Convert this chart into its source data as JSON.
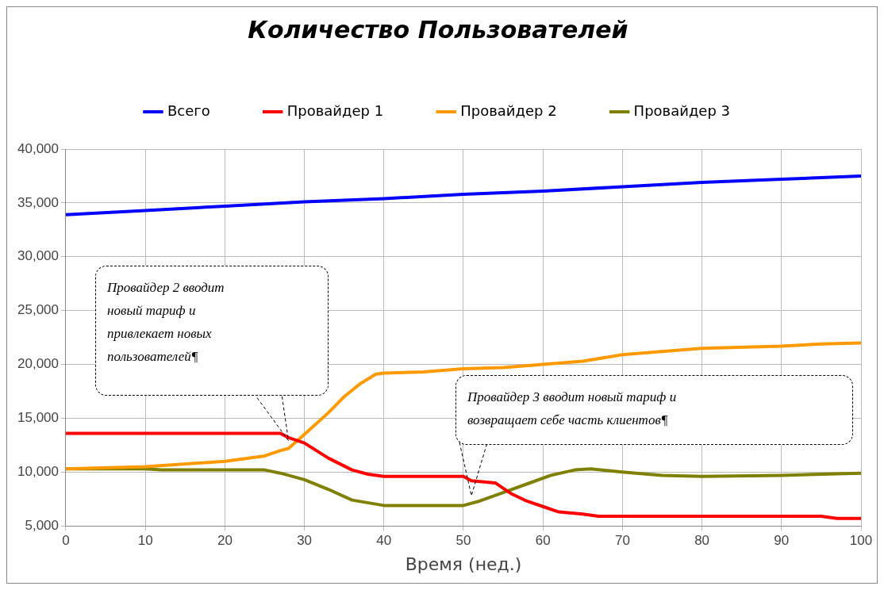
{
  "chart_data": {
    "type": "line",
    "title": "Количество Пользователей",
    "xlabel": "Время (нед.)",
    "xlim": [
      0,
      100
    ],
    "xticks": [
      0,
      10,
      20,
      30,
      40,
      50,
      60,
      70,
      80,
      90,
      100
    ],
    "ylim": [
      5000,
      40000
    ],
    "yticks": [
      {
        "value": 5000,
        "label": "5,000"
      },
      {
        "value": 10000,
        "label": "10,000"
      },
      {
        "value": 15000,
        "label": "15,000"
      },
      {
        "value": 20000,
        "label": "20,000"
      },
      {
        "value": 25000,
        "label": "25,000"
      },
      {
        "value": 30000,
        "label": "30,000"
      },
      {
        "value": 35000,
        "label": "35,000"
      },
      {
        "value": 40000,
        "label": "40,000"
      }
    ],
    "grid": true,
    "legend": "top",
    "marker": "none",
    "line_style": "solid",
    "series": [
      {
        "name": "Всего",
        "color": "#0000ff",
        "x": [
          0,
          10,
          20,
          30,
          40,
          50,
          60,
          70,
          80,
          90,
          100
        ],
        "values": [
          33900,
          34300,
          34700,
          35100,
          35400,
          35800,
          36100,
          36500,
          36900,
          37200,
          37500
        ]
      },
      {
        "name": "Провайдер 1",
        "color": "#ff0000",
        "x": [
          0,
          27,
          28,
          30,
          33,
          36,
          38,
          40,
          50,
          51,
          54,
          56,
          58,
          60,
          62,
          65,
          67,
          95,
          97,
          100
        ],
        "values": [
          13600,
          13600,
          13200,
          12700,
          11300,
          10200,
          9800,
          9600,
          9600,
          9200,
          9000,
          8000,
          7300,
          6800,
          6300,
          6100,
          5900,
          5900,
          5700,
          5700
        ]
      },
      {
        "name": "Провайдер 2",
        "color": "#ff9900",
        "x": [
          0,
          10,
          20,
          25,
          27,
          28,
          30,
          33,
          35,
          37,
          39,
          40,
          45,
          50,
          55,
          60,
          65,
          70,
          75,
          80,
          90,
          95,
          100
        ],
        "values": [
          10300,
          10500,
          11000,
          11500,
          12000,
          12200,
          13500,
          15500,
          17000,
          18200,
          19100,
          19200,
          19300,
          19600,
          19700,
          20000,
          20300,
          20900,
          21200,
          21500,
          21700,
          21900,
          22000
        ]
      },
      {
        "name": "Провайдер 3",
        "color": "#808000",
        "x": [
          0,
          10,
          12,
          25,
          27,
          30,
          33,
          36,
          40,
          50,
          52,
          55,
          58,
          61,
          64,
          66,
          70,
          75,
          80,
          90,
          100
        ],
        "values": [
          10300,
          10300,
          10200,
          10200,
          9900,
          9300,
          8400,
          7400,
          6900,
          6900,
          7300,
          8100,
          8900,
          9700,
          10200,
          10300,
          10000,
          9700,
          9600,
          9700,
          9900
        ]
      }
    ],
    "annotations": [
      "Провайдер 2 вводит новый тариф и привлекает новых пользователей¶",
      "Провайдер 3 вводит новый тариф и возвращает себе часть клиентов¶"
    ]
  }
}
